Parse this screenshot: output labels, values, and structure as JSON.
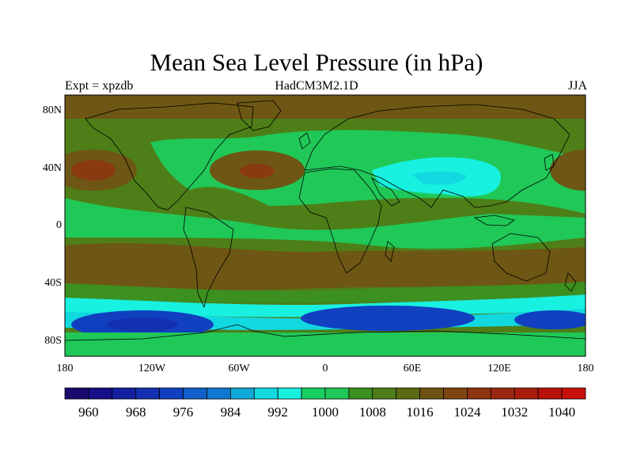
{
  "header": {
    "title": "Mean Sea Level Pressure (in hPa)",
    "left": "Expt = xpzdb",
    "center": "HadCM3M2.1D",
    "right": "JJA"
  },
  "axes": {
    "lat_labels": [
      "80N",
      "40N",
      "0",
      "40S",
      "80S"
    ],
    "lon_labels": [
      "180",
      "120W",
      "60W",
      "0",
      "60E",
      "120E",
      "180"
    ]
  },
  "colorbar": {
    "labels": [
      "960",
      "968",
      "976",
      "984",
      "992",
      "1000",
      "1008",
      "1016",
      "1024",
      "1032",
      "1040"
    ],
    "colors": [
      "#1a0a6e",
      "#150f88",
      "#1220a0",
      "#1230b0",
      "#1040c0",
      "#1060cc",
      "#1078d0",
      "#10a8d8",
      "#12d8e0",
      "#18f0e0",
      "#18d060",
      "#20c858",
      "#3c9020",
      "#4e7e18",
      "#5c6a14",
      "#6e5212",
      "#7e4410",
      "#8e3410",
      "#9a2810",
      "#a81c0c",
      "#b8120a",
      "#c8100a"
    ]
  },
  "map_colors": {
    "high": "#8a3a10",
    "mid_high": "#6e5614",
    "mid": "#4e7e18",
    "mid_low": "#3c9020",
    "low": "#20c858",
    "lower": "#18f0e0",
    "cyan": "#12d8e0",
    "deep": "#1040c0",
    "deeper": "#1230b0"
  }
}
